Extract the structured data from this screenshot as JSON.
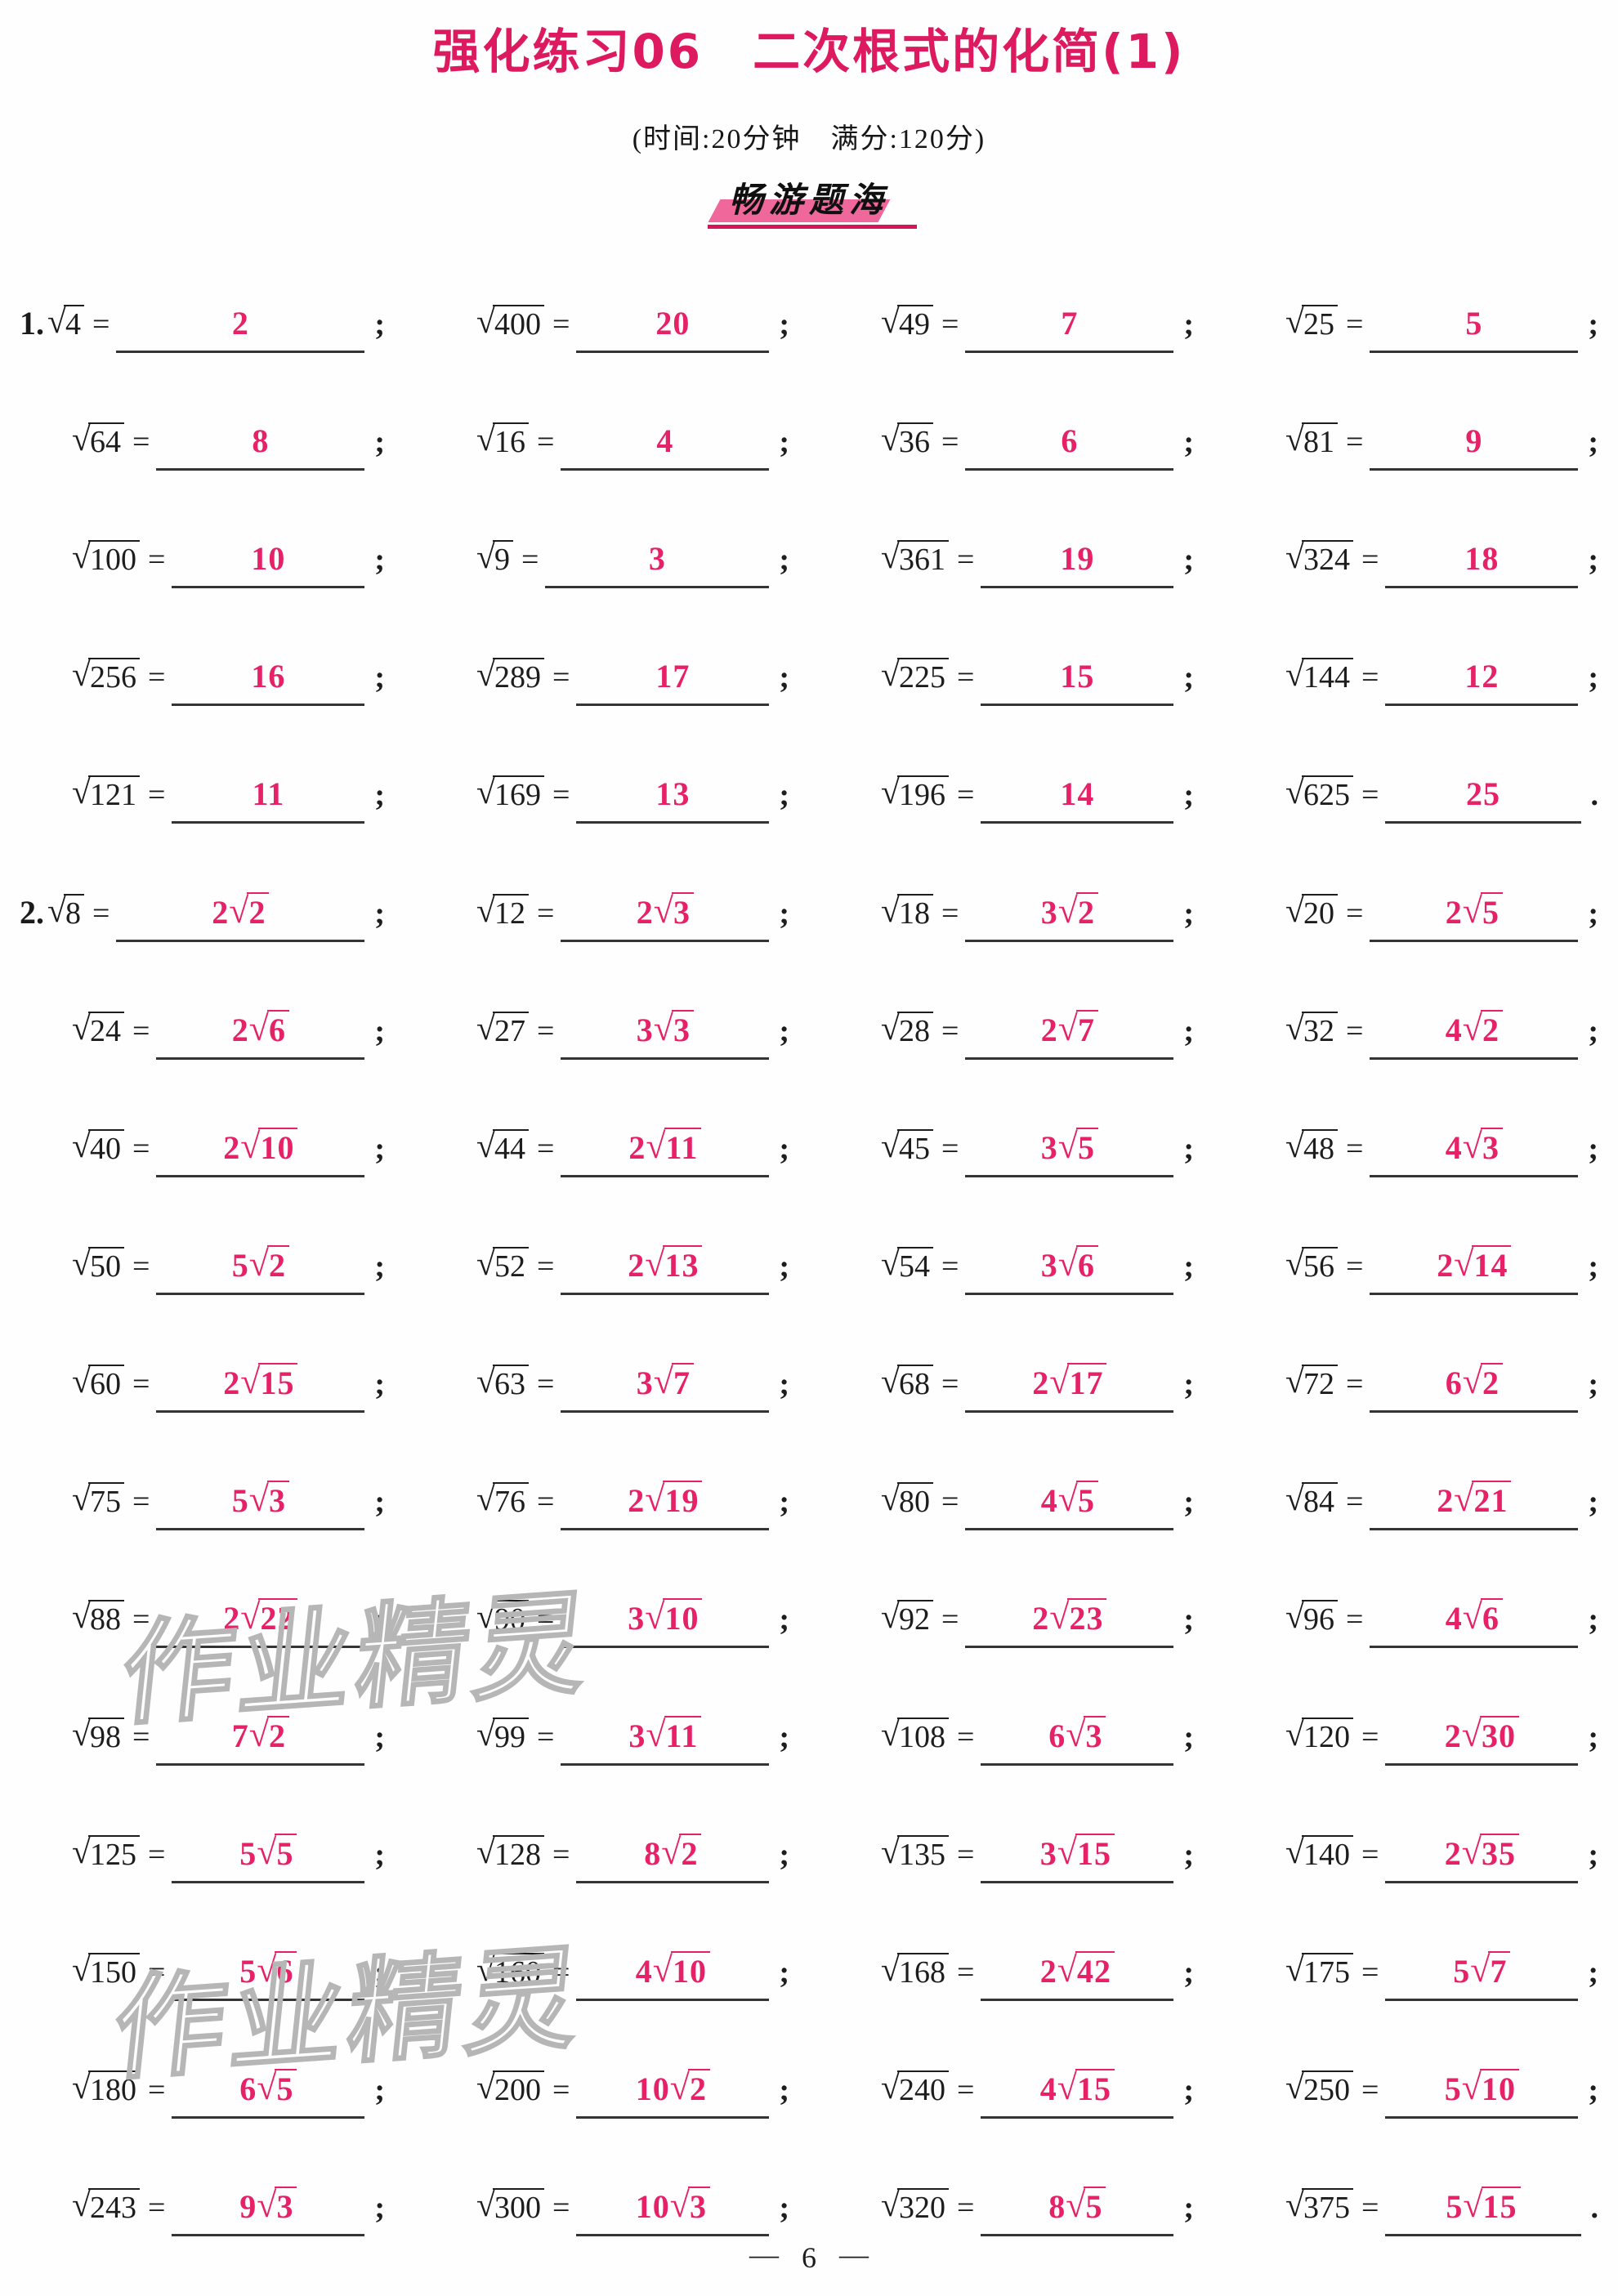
{
  "page": {
    "title": "强化练习06　二次根式的化简(1)",
    "subtitle": "(时间:20分钟　满分:120分)",
    "section_badge": "畅游题海",
    "watermark": "作业精灵",
    "colors": {
      "title_accent": "#dd1a5f",
      "answer_pink": "#e62168",
      "badge_highlight": "#f0679c",
      "badge_underline": "#d6145a",
      "ink": "#1d1d1d"
    }
  },
  "footer": {
    "dash_left": "—",
    "page_number": "6",
    "dash_right": "—"
  },
  "sqrt_sign": "√",
  "sections": [
    {
      "number": "1.",
      "rows": [
        [
          [
            "4",
            "2",
            "",
            ";"
          ],
          [
            "400",
            "20",
            "",
            ";"
          ],
          [
            "49",
            "7",
            "",
            ";"
          ],
          [
            "25",
            "5",
            "",
            ";"
          ]
        ],
        [
          [
            "64",
            "8",
            "",
            ";"
          ],
          [
            "16",
            "4",
            "",
            ";"
          ],
          [
            "36",
            "6",
            "",
            ";"
          ],
          [
            "81",
            "9",
            "",
            ";"
          ]
        ],
        [
          [
            "100",
            "10",
            "",
            ";"
          ],
          [
            "9",
            "3",
            "",
            ";"
          ],
          [
            "361",
            "19",
            "",
            ";"
          ],
          [
            "324",
            "18",
            "",
            ";"
          ]
        ],
        [
          [
            "256",
            "16",
            "",
            ";"
          ],
          [
            "289",
            "17",
            "",
            ";"
          ],
          [
            "225",
            "15",
            "",
            ";"
          ],
          [
            "144",
            "12",
            "",
            ";"
          ]
        ],
        [
          [
            "121",
            "11",
            "",
            ";"
          ],
          [
            "169",
            "13",
            "",
            ";"
          ],
          [
            "196",
            "14",
            "",
            ";"
          ],
          [
            "625",
            "25",
            "",
            "."
          ]
        ]
      ]
    },
    {
      "number": "2.",
      "rows": [
        [
          [
            "8",
            "2",
            "2",
            ";"
          ],
          [
            "12",
            "2",
            "3",
            ";"
          ],
          [
            "18",
            "3",
            "2",
            ";"
          ],
          [
            "20",
            "2",
            "5",
            ";"
          ]
        ],
        [
          [
            "24",
            "2",
            "6",
            ";"
          ],
          [
            "27",
            "3",
            "3",
            ";"
          ],
          [
            "28",
            "2",
            "7",
            ";"
          ],
          [
            "32",
            "4",
            "2",
            ";"
          ]
        ],
        [
          [
            "40",
            "2",
            "10",
            ";"
          ],
          [
            "44",
            "2",
            "11",
            ";"
          ],
          [
            "45",
            "3",
            "5",
            ";"
          ],
          [
            "48",
            "4",
            "3",
            ";"
          ]
        ],
        [
          [
            "50",
            "5",
            "2",
            ";"
          ],
          [
            "52",
            "2",
            "13",
            ";"
          ],
          [
            "54",
            "3",
            "6",
            ";"
          ],
          [
            "56",
            "2",
            "14",
            ";"
          ]
        ],
        [
          [
            "60",
            "2",
            "15",
            ";"
          ],
          [
            "63",
            "3",
            "7",
            ";"
          ],
          [
            "68",
            "2",
            "17",
            ";"
          ],
          [
            "72",
            "6",
            "2",
            ";"
          ]
        ],
        [
          [
            "75",
            "5",
            "3",
            ";"
          ],
          [
            "76",
            "2",
            "19",
            ";"
          ],
          [
            "80",
            "4",
            "5",
            ";"
          ],
          [
            "84",
            "2",
            "21",
            ";"
          ]
        ],
        [
          [
            "88",
            "2",
            "22",
            ";"
          ],
          [
            "90",
            "3",
            "10",
            ";"
          ],
          [
            "92",
            "2",
            "23",
            ";"
          ],
          [
            "96",
            "4",
            "6",
            ";"
          ]
        ],
        [
          [
            "98",
            "7",
            "2",
            ";"
          ],
          [
            "99",
            "3",
            "11",
            ";"
          ],
          [
            "108",
            "6",
            "3",
            ";"
          ],
          [
            "120",
            "2",
            "30",
            ";"
          ]
        ],
        [
          [
            "125",
            "5",
            "5",
            ";"
          ],
          [
            "128",
            "8",
            "2",
            ";"
          ],
          [
            "135",
            "3",
            "15",
            ";"
          ],
          [
            "140",
            "2",
            "35",
            ";"
          ]
        ],
        [
          [
            "150",
            "5",
            "6",
            ";"
          ],
          [
            "160",
            "4",
            "10",
            ";"
          ],
          [
            "168",
            "2",
            "42",
            ";"
          ],
          [
            "175",
            "5",
            "7",
            ";"
          ]
        ],
        [
          [
            "180",
            "6",
            "5",
            ";"
          ],
          [
            "200",
            "10",
            "2",
            ";"
          ],
          [
            "240",
            "4",
            "15",
            ";"
          ],
          [
            "250",
            "5",
            "10",
            ";"
          ]
        ],
        [
          [
            "243",
            "9",
            "3",
            ";"
          ],
          [
            "300",
            "10",
            "3",
            ";"
          ],
          [
            "320",
            "8",
            "5",
            ";"
          ],
          [
            "375",
            "5",
            "15",
            "."
          ]
        ]
      ]
    }
  ]
}
